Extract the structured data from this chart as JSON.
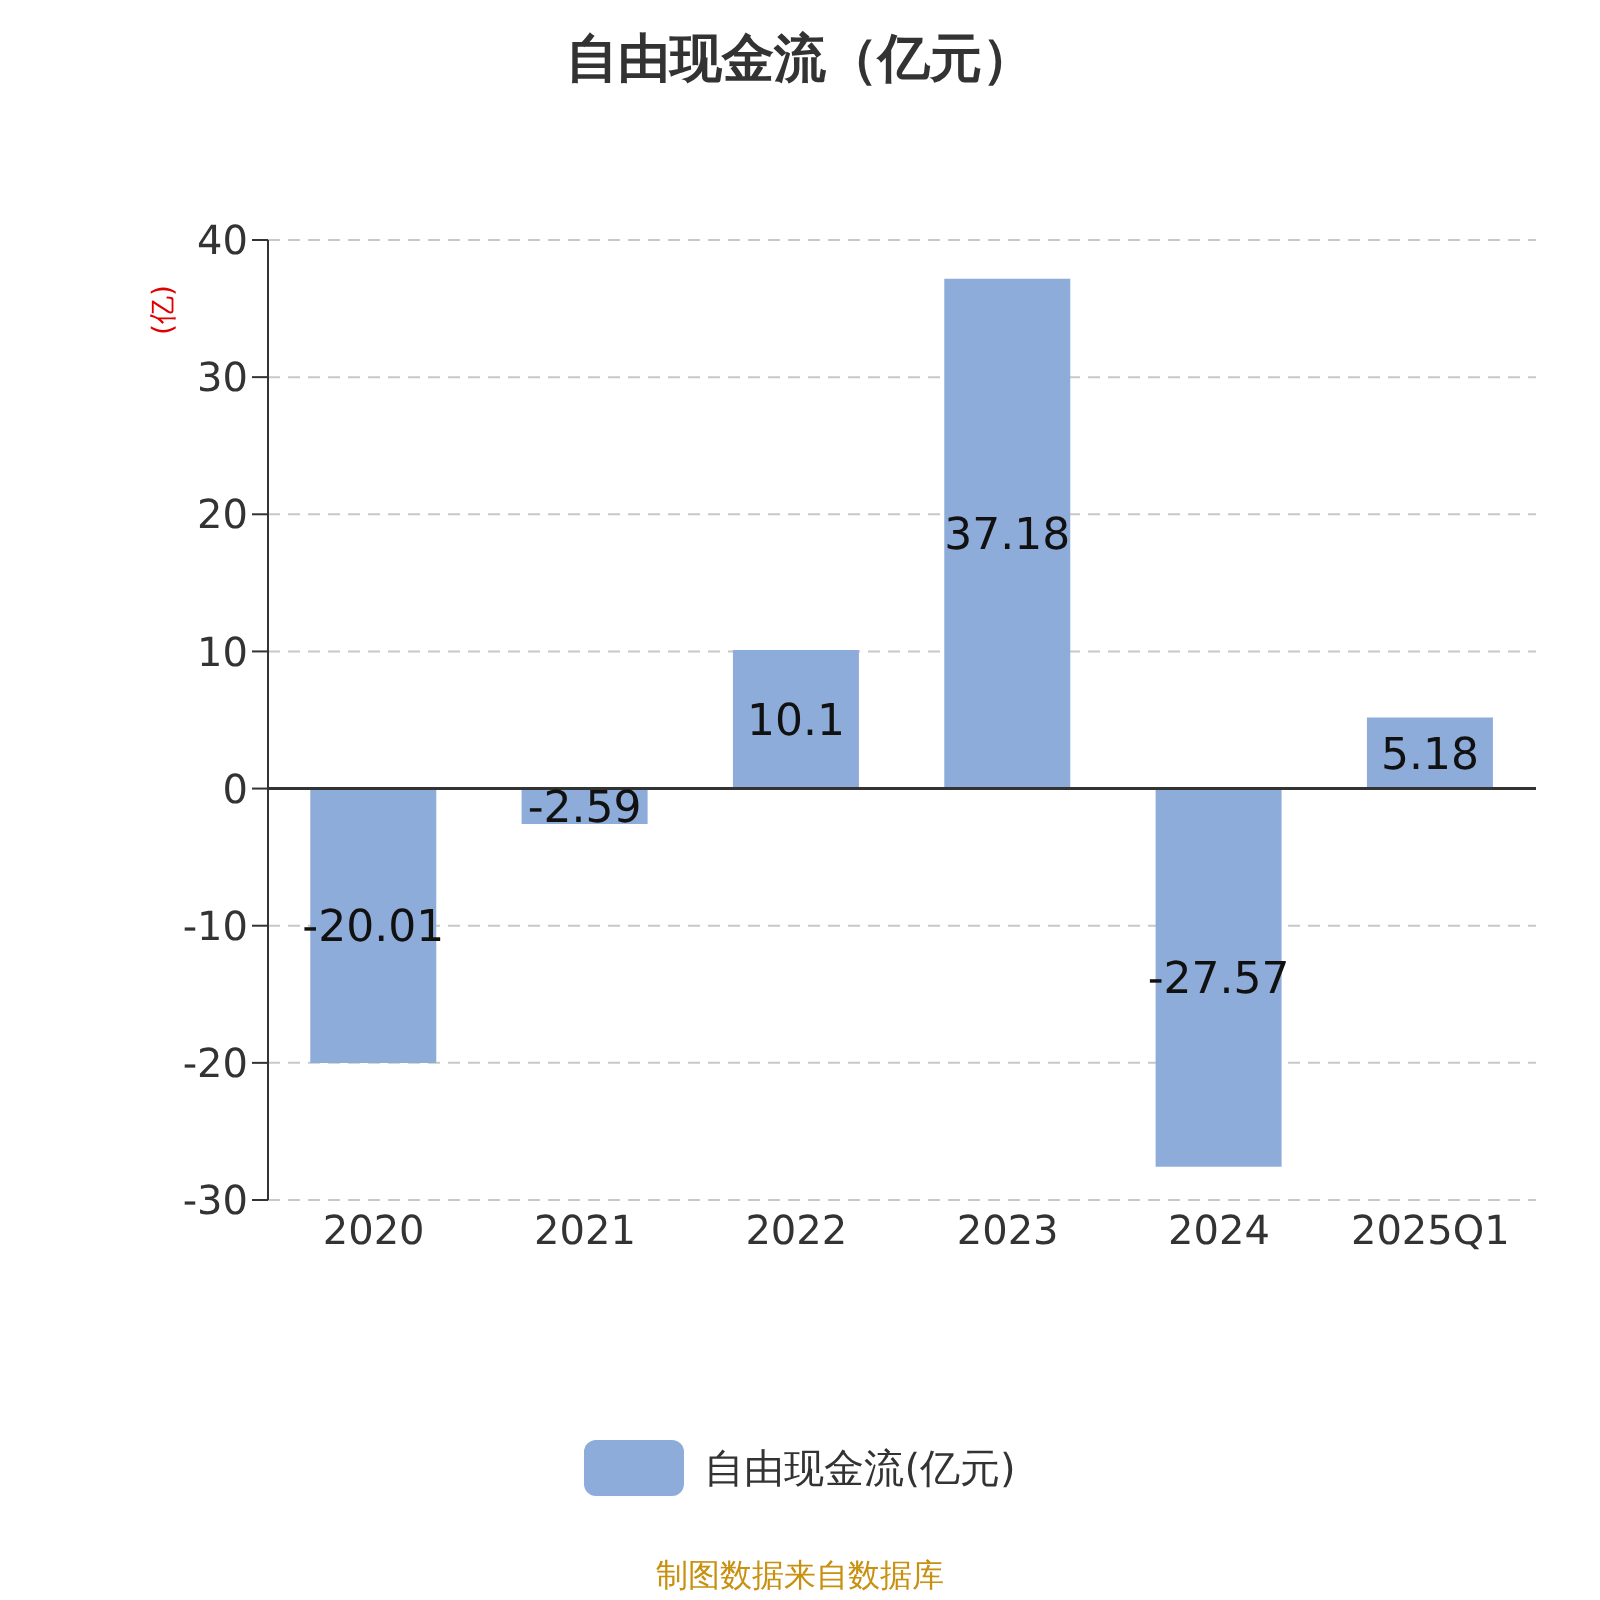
{
  "chart_data": {
    "type": "bar",
    "title": "自由现金流（亿元）",
    "ylabel": "(亿)",
    "categories": [
      "2020",
      "2021",
      "2022",
      "2023",
      "2024",
      "2025Q1"
    ],
    "series": [
      {
        "name": "自由现金流(亿元)",
        "color": "#8eacd9",
        "values": [
          -20.01,
          -2.59,
          10.1,
          37.18,
          -27.57,
          5.18
        ]
      }
    ],
    "ylim": [
      -30,
      40
    ],
    "yticks": [
      -30,
      -20,
      -10,
      0,
      10,
      20,
      30,
      40
    ],
    "grid": "y",
    "legend": "bottom",
    "data_labels": true,
    "annotations": [
      "制图数据来自数据库"
    ]
  }
}
